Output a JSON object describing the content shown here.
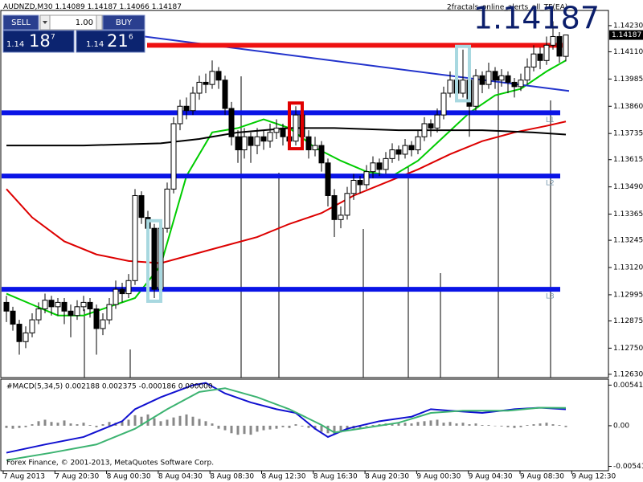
{
  "header": {
    "symbol": "AUDNZD,M30",
    "ea_name": "2fractals_online_alerts_all_TF(EA)",
    "copyright": "Forex Finance, © 2001-2013, MetaQuotes Software Corp."
  },
  "trade_panel": {
    "sell": "SELL",
    "buy": "BUY",
    "lot": "1.00",
    "sell_prefix": "1.14",
    "sell_big": "18",
    "sell_small": "7",
    "buy_prefix": "1.14",
    "buy_big": "21",
    "buy_small": "6"
  },
  "chart_data": [
    {
      "type": "candlestick",
      "ylim": [
        1.12615,
        1.14296
      ],
      "yticks": [
        {
          "value": 1.1423,
          "label": "1.14230"
        },
        {
          "value": 1.1411,
          "label": "1.14110"
        },
        1.13985,
        {
          "value": 1.1386,
          "label": "1.13860"
        },
        1.13735,
        1.13615,
        {
          "value": 1.1349,
          "label": "1.13490"
        },
        1.13365,
        1.13245,
        {
          "value": 1.1312,
          "label": "1.13120"
        },
        1.12995,
        1.12875,
        {
          "value": 1.1275,
          "label": "1.12750"
        },
        {
          "value": 1.1263,
          "label": "1.12630"
        }
      ],
      "xtick_labels": [
        "7 Aug 2013",
        "7 Aug 20:30",
        "8 Aug 00:30",
        "8 Aug 04:30",
        "8 Aug 08:30",
        "8 Aug 12:30",
        "8 Aug 16:30",
        "8 Aug 20:30",
        "9 Aug 00:30",
        "9 Aug 04:30",
        "9 Aug 08:30",
        "9 Aug 12:30"
      ],
      "grid": false,
      "up_color": "#ffffff",
      "down_color": "#000000",
      "candles": [
        [
          1.1296,
          1.1299,
          1.1287,
          1.1292
        ],
        [
          1.1292,
          1.1294,
          1.1283,
          1.1286
        ],
        [
          1.1286,
          1.1288,
          1.1272,
          1.1278
        ],
        [
          1.1278,
          1.1285,
          1.1275,
          1.1282
        ],
        [
          1.1282,
          1.1291,
          1.128,
          1.1288
        ],
        [
          1.1288,
          1.1296,
          1.1286,
          1.1293
        ],
        [
          1.1293,
          1.13,
          1.1291,
          1.1297
        ],
        [
          1.1297,
          1.1299,
          1.129,
          1.1294
        ],
        [
          1.1294,
          1.1298,
          1.129,
          1.1296
        ],
        [
          1.1296,
          1.1298,
          1.1286,
          1.1292
        ],
        [
          1.1292,
          1.1295,
          1.128,
          1.129
        ],
        [
          1.129,
          1.1297,
          1.1288,
          1.1294
        ],
        [
          1.1294,
          1.1299,
          1.1292,
          1.1296
        ],
        [
          1.1296,
          1.1298,
          1.1289,
          1.1293
        ],
        [
          1.1293,
          1.1295,
          1.1272,
          1.1284
        ],
        [
          1.1284,
          1.1291,
          1.1281,
          1.1288
        ],
        [
          1.1288,
          1.1298,
          1.1286,
          1.1295
        ],
        [
          1.1295,
          1.1306,
          1.1293,
          1.1302
        ],
        [
          1.1302,
          1.1305,
          1.1296,
          1.13
        ],
        [
          1.13,
          1.1309,
          1.1298,
          1.1306
        ],
        [
          1.1306,
          1.1348,
          1.1304,
          1.1345
        ],
        [
          1.1345,
          1.1347,
          1.1332,
          1.1335
        ],
        [
          1.1335,
          1.1338,
          1.1326,
          1.133
        ],
        [
          1.133,
          1.1332,
          1.1298,
          1.1302
        ],
        [
          1.1302,
          1.1333,
          1.13,
          1.133
        ],
        [
          1.133,
          1.1351,
          1.1328,
          1.1348
        ],
        [
          1.1348,
          1.1381,
          1.1346,
          1.1378
        ],
        [
          1.1378,
          1.1389,
          1.1375,
          1.1386
        ],
        [
          1.1386,
          1.139,
          1.138,
          1.1384
        ],
        [
          1.1384,
          1.1395,
          1.1382,
          1.1392
        ],
        [
          1.1392,
          1.14,
          1.1389,
          1.1397
        ],
        [
          1.1397,
          1.1401,
          1.1392,
          1.1396
        ],
        [
          1.1396,
          1.1407,
          1.1394,
          1.1402
        ],
        [
          1.1402,
          1.1404,
          1.1394,
          1.1398
        ],
        [
          1.1398,
          1.14,
          1.1382,
          1.1385
        ],
        [
          1.1385,
          1.1388,
          1.1368,
          1.1372
        ],
        [
          1.1372,
          1.1375,
          1.136,
          1.1366
        ],
        [
          1.1366,
          1.1376,
          1.1362,
          1.1372
        ],
        [
          1.1372,
          1.1374,
          1.136,
          1.1368
        ],
        [
          1.1368,
          1.1376,
          1.1364,
          1.1372
        ],
        [
          1.1372,
          1.1375,
          1.1366,
          1.137
        ],
        [
          1.137,
          1.1378,
          1.1367,
          1.1374
        ],
        [
          1.1374,
          1.138,
          1.1371,
          1.1376
        ],
        [
          1.1376,
          1.1378,
          1.1368,
          1.1372
        ],
        [
          1.1372,
          1.1374,
          1.1366,
          1.137
        ],
        [
          1.137,
          1.1386,
          1.1368,
          1.1382
        ],
        [
          1.1382,
          1.1384,
          1.1369,
          1.1372
        ],
        [
          1.1372,
          1.1375,
          1.1362,
          1.1366
        ],
        [
          1.1366,
          1.1372,
          1.1363,
          1.1368
        ],
        [
          1.1368,
          1.137,
          1.1356,
          1.136
        ],
        [
          1.136,
          1.1362,
          1.134,
          1.1345
        ],
        [
          1.1345,
          1.1348,
          1.1326,
          1.1334
        ],
        [
          1.1334,
          1.134,
          1.133,
          1.1336
        ],
        [
          1.1336,
          1.1349,
          1.1334,
          1.1346
        ],
        [
          1.1346,
          1.1355,
          1.1343,
          1.1352
        ],
        [
          1.1352,
          1.1354,
          1.1346,
          1.135
        ],
        [
          1.135,
          1.1359,
          1.1348,
          1.1356
        ],
        [
          1.1356,
          1.1363,
          1.1353,
          1.136
        ],
        [
          1.136,
          1.1362,
          1.1354,
          1.1357
        ],
        [
          1.1357,
          1.1365,
          1.1355,
          1.1362
        ],
        [
          1.1362,
          1.1369,
          1.136,
          1.1366
        ],
        [
          1.1366,
          1.1368,
          1.1361,
          1.1364
        ],
        [
          1.1364,
          1.1371,
          1.1362,
          1.1368
        ],
        [
          1.1368,
          1.137,
          1.1363,
          1.1366
        ],
        [
          1.1366,
          1.1375,
          1.1364,
          1.1372
        ],
        [
          1.1372,
          1.1381,
          1.137,
          1.1378
        ],
        [
          1.1378,
          1.138,
          1.1372,
          1.1376
        ],
        [
          1.1376,
          1.1385,
          1.1374,
          1.1382
        ],
        [
          1.1382,
          1.1395,
          1.138,
          1.1392
        ],
        [
          1.1392,
          1.1402,
          1.139,
          1.1398
        ],
        [
          1.1398,
          1.14,
          1.1388,
          1.1392
        ],
        [
          1.1392,
          1.1412,
          1.139,
          1.1398
        ],
        [
          1.1398,
          1.14,
          1.1372,
          1.1386
        ],
        [
          1.1386,
          1.1403,
          1.1384,
          1.14
        ],
        [
          1.14,
          1.1402,
          1.1392,
          1.1396
        ],
        [
          1.1396,
          1.1406,
          1.1394,
          1.1402
        ],
        [
          1.1402,
          1.1404,
          1.1394,
          1.1398
        ],
        [
          1.1398,
          1.1403,
          1.1395,
          1.14
        ],
        [
          1.14,
          1.1402,
          1.1392,
          1.1397
        ],
        [
          1.1397,
          1.1399,
          1.139,
          1.1395
        ],
        [
          1.1395,
          1.1401,
          1.1393,
          1.1398
        ],
        [
          1.1398,
          1.1408,
          1.1396,
          1.1404
        ],
        [
          1.1404,
          1.1414,
          1.1402,
          1.141
        ],
        [
          1.141,
          1.1413,
          1.1403,
          1.1407
        ],
        [
          1.1407,
          1.1418,
          1.1405,
          1.1414
        ],
        [
          1.1414,
          1.1425,
          1.1412,
          1.1418
        ],
        [
          1.1418,
          1.142,
          1.1406,
          1.1409
        ],
        [
          1.14089,
          1.14187,
          1.14066,
          1.14187
        ]
      ],
      "lines": [
        {
          "color": "#00cc00",
          "x": [
            0,
            4,
            8,
            12,
            16,
            20,
            24,
            28,
            32,
            36,
            40,
            44,
            48,
            52,
            56,
            60,
            64,
            68,
            72,
            76,
            80,
            84,
            87
          ],
          "values": [
            1.13,
            1.1295,
            1.129,
            1.129,
            1.1294,
            1.1298,
            1.1313,
            1.1354,
            1.1374,
            1.1376,
            1.138,
            1.1376,
            1.1367,
            1.1361,
            1.1356,
            1.1354,
            1.1361,
            1.1372,
            1.1383,
            1.1391,
            1.1394,
            1.1402,
            1.1407
          ]
        },
        {
          "color": "#dd0000",
          "x": [
            0,
            4,
            9,
            14,
            19,
            24,
            29,
            34,
            39,
            44,
            49,
            54,
            59,
            64,
            69,
            74,
            79,
            84,
            87
          ],
          "values": [
            1.1348,
            1.1335,
            1.1324,
            1.1318,
            1.1315,
            1.1314,
            1.1318,
            1.1322,
            1.1326,
            1.1332,
            1.1337,
            1.1345,
            1.1351,
            1.1357,
            1.1364,
            1.137,
            1.1374,
            1.1377,
            1.1379
          ]
        },
        {
          "color": "#000000",
          "x": [
            0,
            12,
            24,
            30,
            36,
            44,
            51,
            61,
            74,
            82,
            87
          ],
          "values": [
            1.1368,
            1.1368,
            1.1369,
            1.1371,
            1.1374,
            1.1376,
            1.1376,
            1.1375,
            1.1375,
            1.1374,
            1.1373
          ]
        },
        {
          "color": "#2233cc",
          "x": [
            21.5,
            87.5
          ],
          "values": [
            1.1418,
            1.1393
          ]
        }
      ],
      "levels": [
        {
          "value": 1.1414,
          "color": "#ee1111"
        },
        {
          "value": 1.1383,
          "color": "#0a14e6",
          "label": "L1"
        },
        {
          "value": 1.1354,
          "color": "#0a14e6",
          "label": "L2"
        },
        {
          "value": 1.1302,
          "color": "#0a14e6",
          "label": "L3"
        }
      ]
    },
    {
      "type": "macd",
      "title": "#MACD(5,34,5) 0.002188 0.002375 -0.000186 0.000000",
      "ylim": [
        -0.006,
        0.0062
      ],
      "yticks": [
        0.00541,
        {
          "value": 0,
          "label": "0.00"
        },
        -0.00541
      ],
      "hist_color": "#888888",
      "histogram": [
        -0.0003,
        -0.0004,
        -0.0003,
        -0.0002,
        0.0002,
        0.0006,
        0.0008,
        0.0005,
        0.0004,
        0.0007,
        0.0003,
        0.0002,
        0.0004,
        0.0001,
        -0.0002,
        0.0002,
        0.0005,
        0.0004,
        0.0006,
        0.0008,
        0.0014,
        0.0012,
        0.0015,
        0.001,
        0.0006,
        0.0008,
        0.0011,
        0.0013,
        0.0015,
        0.0012,
        0.0009,
        0.0006,
        0.0003,
        -0.0004,
        -0.0006,
        -0.001,
        -0.0012,
        -0.0011,
        -0.0012,
        -0.0008,
        -0.0006,
        -0.0005,
        -0.0004,
        -0.0002,
        -0.0003,
        0.0002,
        -0.0001,
        -0.0003,
        -0.0005,
        -0.0008,
        -0.001,
        -0.0012,
        -0.0009,
        -0.0006,
        -0.0004,
        -0.0003,
        -0.0001,
        0.0001,
        0.0002,
        0.0003,
        0.0002,
        0.0003,
        0.0004,
        0.0003,
        0.0005,
        0.0006,
        0.0007,
        0.0008,
        0.0004,
        0.0005,
        0.0003,
        0.0004,
        0.0002,
        0.0003,
        0.0001,
        0.0001,
        0,
        -0.0001,
        -0.0002,
        -0.0003,
        -0.0002,
        0.0001,
        0.0002,
        0.0003,
        0.0004,
        0.0002,
        0.0001,
        -0.000186
      ],
      "lines": [
        {
          "color": "#1010d0",
          "x": [
            0,
            6,
            12,
            18,
            20,
            24,
            29,
            31,
            34,
            38,
            42,
            45,
            48,
            50,
            53,
            58,
            63,
            66,
            69,
            74,
            79,
            83,
            87
          ],
          "values": [
            -0.0036,
            -0.0025,
            -0.0015,
            0.0006,
            0.0022,
            0.0038,
            0.0054,
            0.0057,
            0.0043,
            0.0031,
            0.0022,
            0.0017,
            -0.0004,
            -0.0015,
            -0.0004,
            0.0006,
            0.0012,
            0.0022,
            0.002,
            0.0017,
            0.0022,
            0.0024,
            0.002188
          ]
        },
        {
          "color": "#3cb371",
          "x": [
            0,
            7,
            14,
            20,
            25,
            30,
            34,
            39,
            44,
            49,
            51,
            55,
            61,
            66,
            71,
            78,
            83,
            87
          ],
          "values": [
            -0.0046,
            -0.0036,
            -0.0025,
            -0.0004,
            0.0022,
            0.0045,
            0.005,
            0.0038,
            0.0022,
            0.0001,
            -0.0009,
            -0.0004,
            0.0004,
            0.0017,
            0.002,
            0.002,
            0.0024,
            0.002375
          ]
        }
      ]
    }
  ]
}
